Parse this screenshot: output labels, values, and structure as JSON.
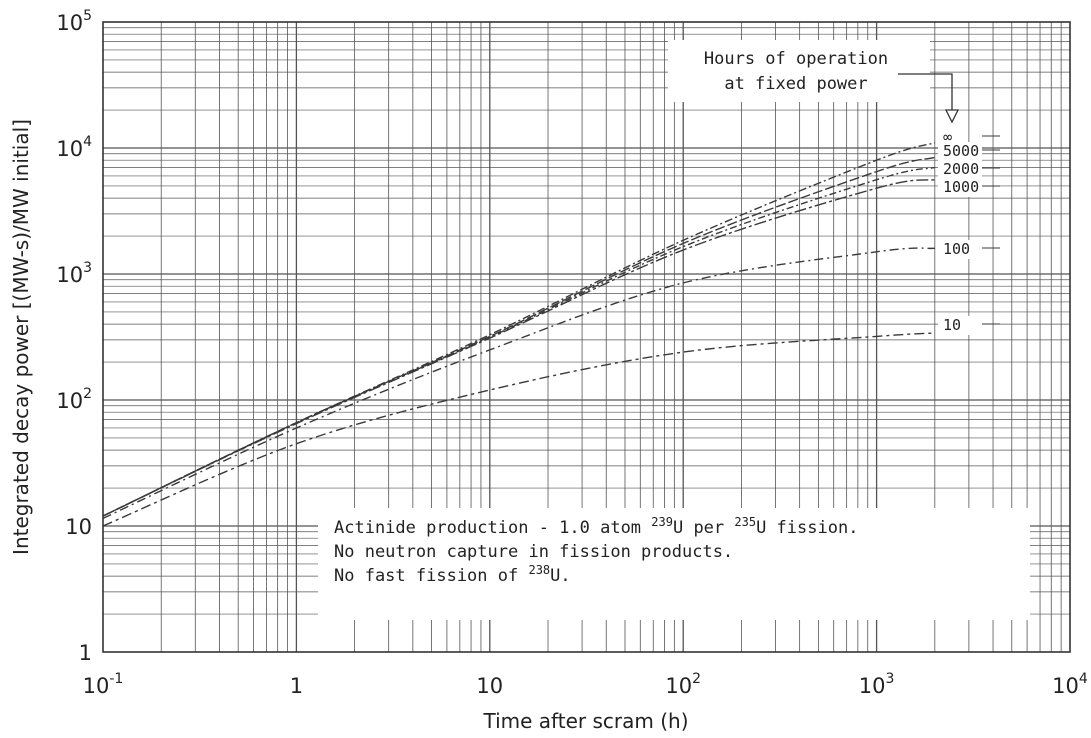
{
  "chart_data": {
    "type": "line",
    "title": "",
    "xlabel": "Time after scram (h)",
    "ylabel": "Integrated decay power [(MW-s)/MW initial]",
    "xscale": "log",
    "yscale": "log",
    "xlim": [
      0.1,
      10000
    ],
    "ylim": [
      1,
      100000
    ],
    "grid": true,
    "x_tick_labels": [
      {
        "base": "10",
        "exp": "-1"
      },
      {
        "base": "1",
        "exp": ""
      },
      {
        "base": "10",
        "exp": ""
      },
      {
        "base": "10",
        "exp": "2"
      },
      {
        "base": "10",
        "exp": "3"
      },
      {
        "base": "10",
        "exp": "4"
      }
    ],
    "y_tick_labels": [
      {
        "base": "1",
        "exp": ""
      },
      {
        "base": "10",
        "exp": ""
      },
      {
        "base": "10",
        "exp": "2"
      },
      {
        "base": "10",
        "exp": "3"
      },
      {
        "base": "10",
        "exp": "4"
      },
      {
        "base": "10",
        "exp": "5"
      }
    ],
    "legend_title_lines": [
      "Hours of operation",
      "at fixed power"
    ],
    "legend_placement": "top-right",
    "series": [
      {
        "name": "∞",
        "x": [
          0.1,
          1,
          10,
          100,
          1000,
          2000
        ],
        "y": [
          12,
          66,
          330,
          1850,
          8000,
          11000
        ]
      },
      {
        "name": "5000",
        "x": [
          0.1,
          1,
          10,
          100,
          1000,
          2000
        ],
        "y": [
          12,
          66,
          320,
          1750,
          6500,
          8400
        ]
      },
      {
        "name": "2000",
        "x": [
          0.1,
          1,
          10,
          100,
          1000,
          2000
        ],
        "y": [
          12,
          66,
          315,
          1650,
          5600,
          7000
        ]
      },
      {
        "name": "1000",
        "x": [
          0.1,
          1,
          10,
          100,
          1000,
          2000
        ],
        "y": [
          12,
          65,
          310,
          1550,
          4800,
          5600
        ]
      },
      {
        "name": "100",
        "x": [
          0.1,
          1,
          10,
          100,
          1000,
          2000
        ],
        "y": [
          11.5,
          60,
          250,
          850,
          1500,
          1600
        ]
      },
      {
        "name": "10",
        "x": [
          0.1,
          1,
          10,
          100,
          1000,
          2000
        ],
        "y": [
          10,
          45,
          120,
          240,
          320,
          340
        ]
      }
    ],
    "annotation_lines": [
      {
        "segments": [
          {
            "text": "Actinide production - 1.0 atom ",
            "sup": false
          },
          {
            "text": "239",
            "sup": true
          },
          {
            "text": "U per ",
            "sup": false
          },
          {
            "text": "235",
            "sup": true
          },
          {
            "text": "U fission.",
            "sup": false
          }
        ]
      },
      {
        "segments": [
          {
            "text": "No neutron capture in fission products.",
            "sup": false
          }
        ]
      },
      {
        "segments": [
          {
            "text": "No fast fission of ",
            "sup": false
          },
          {
            "text": "238",
            "sup": true
          },
          {
            "text": "U.",
            "sup": false
          }
        ]
      }
    ],
    "colors": {
      "line": "#3a3a3a",
      "grid": "#555555",
      "frame": "#333333",
      "background": "#ffffff"
    }
  }
}
